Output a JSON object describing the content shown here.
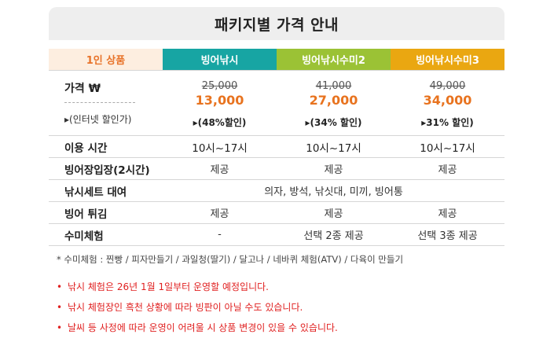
{
  "title": "패키지별 가격 안내",
  "header": {
    "label": "1인 상품",
    "col1": "빙어낚시",
    "col2": "빙어낚시수미2",
    "col3": "빙어낚시수미3"
  },
  "colors": {
    "col1": "#17a5a3",
    "col2": "#9bc235",
    "col3": "#eaa711",
    "accent": "#e8731f"
  },
  "price": {
    "label": "가격 ₩",
    "sub": "▸(인터넷 할인가)",
    "col1": {
      "orig": "25,000",
      "sale": "13,000",
      "disc": "▸(48%할인)"
    },
    "col2": {
      "orig": "41,000",
      "sale": "27,000",
      "disc": "▸(34% 할인)"
    },
    "col3": {
      "orig": "49,000",
      "sale": "34,000",
      "disc": "▸31% 할인)"
    }
  },
  "rows": [
    {
      "label": "이용 시간",
      "c1": "10시~17시",
      "c2": "10시~17시",
      "c3": "10시~17시"
    },
    {
      "label": "빙어장입장(2시간)",
      "c1": "제공",
      "c2": "제공",
      "c3": "제공"
    },
    {
      "label": "낚시세트 대여",
      "span": "의자, 방석, 낚싯대, 미끼, 빙어통"
    },
    {
      "label": "빙어 튀김",
      "c1": "제공",
      "c2": "제공",
      "c3": "제공"
    },
    {
      "label": "수미체험",
      "c1": "-",
      "c2": "선택 2종 제공",
      "c3": "선택 3종 제공"
    }
  ],
  "note": "* 수미체험 :  찐빵 /  피자만들기 / 과일청(딸기) / 달고나 / 네바퀴 체험(ATV) / 다육이 만들기",
  "bullets": [
    "낚시 체험은 26년 1월 1일부터 운영할 예정입니다.",
    "낚시 체험장인 흑천 상황에 따라 빙판이 아닐 수도 있습니다.",
    "날씨 등 사정에 따라 운영이 어려울 시 상품 변경이 있을 수 있습니다."
  ]
}
